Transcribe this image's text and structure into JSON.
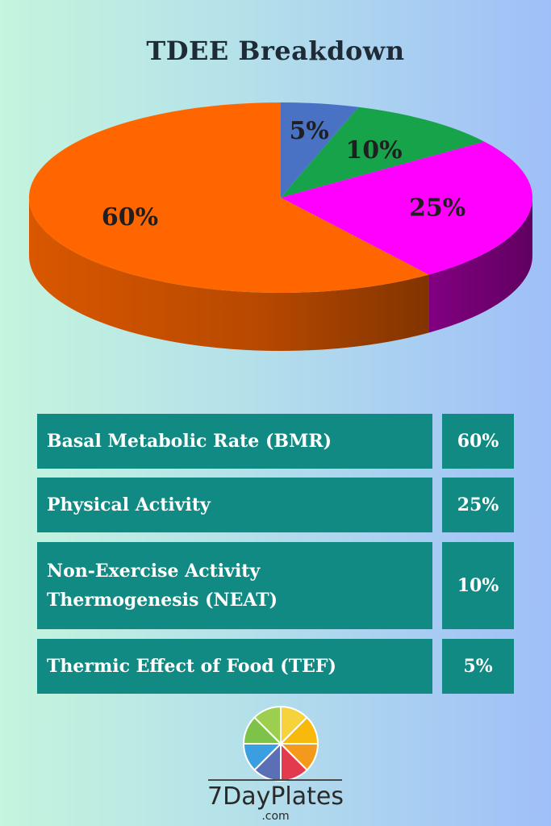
{
  "chart_data": {
    "type": "pie",
    "title": "TDEE Breakdown",
    "slices": [
      {
        "label": "5%",
        "value": 5,
        "color": "#4a72c4"
      },
      {
        "label": "10%",
        "value": 10,
        "color": "#16a34a"
      },
      {
        "label": "25%",
        "value": 25,
        "color": "#ff00ff"
      },
      {
        "label": "60%",
        "value": 60,
        "color": "#ff6600"
      }
    ]
  },
  "table": {
    "rows": [
      {
        "name": "Basal Metabolic Rate (BMR)",
        "value": "60%"
      },
      {
        "name": "Physical Activity",
        "value": "25%"
      },
      {
        "name": "Non-Exercise Activity Thermogenesis (NEAT)",
        "value": "10%"
      },
      {
        "name": "Thermic Effect of Food (TEF)",
        "value": "5%"
      }
    ]
  },
  "logo": {
    "name": "7DayPlates",
    "sub": ".com",
    "wedge_colors": [
      "#f6d33c",
      "#f7b90c",
      "#f39a1c",
      "#e33a4e",
      "#5a6fb5",
      "#3a9ee0",
      "#7ec24a",
      "#9ccf4e"
    ]
  }
}
